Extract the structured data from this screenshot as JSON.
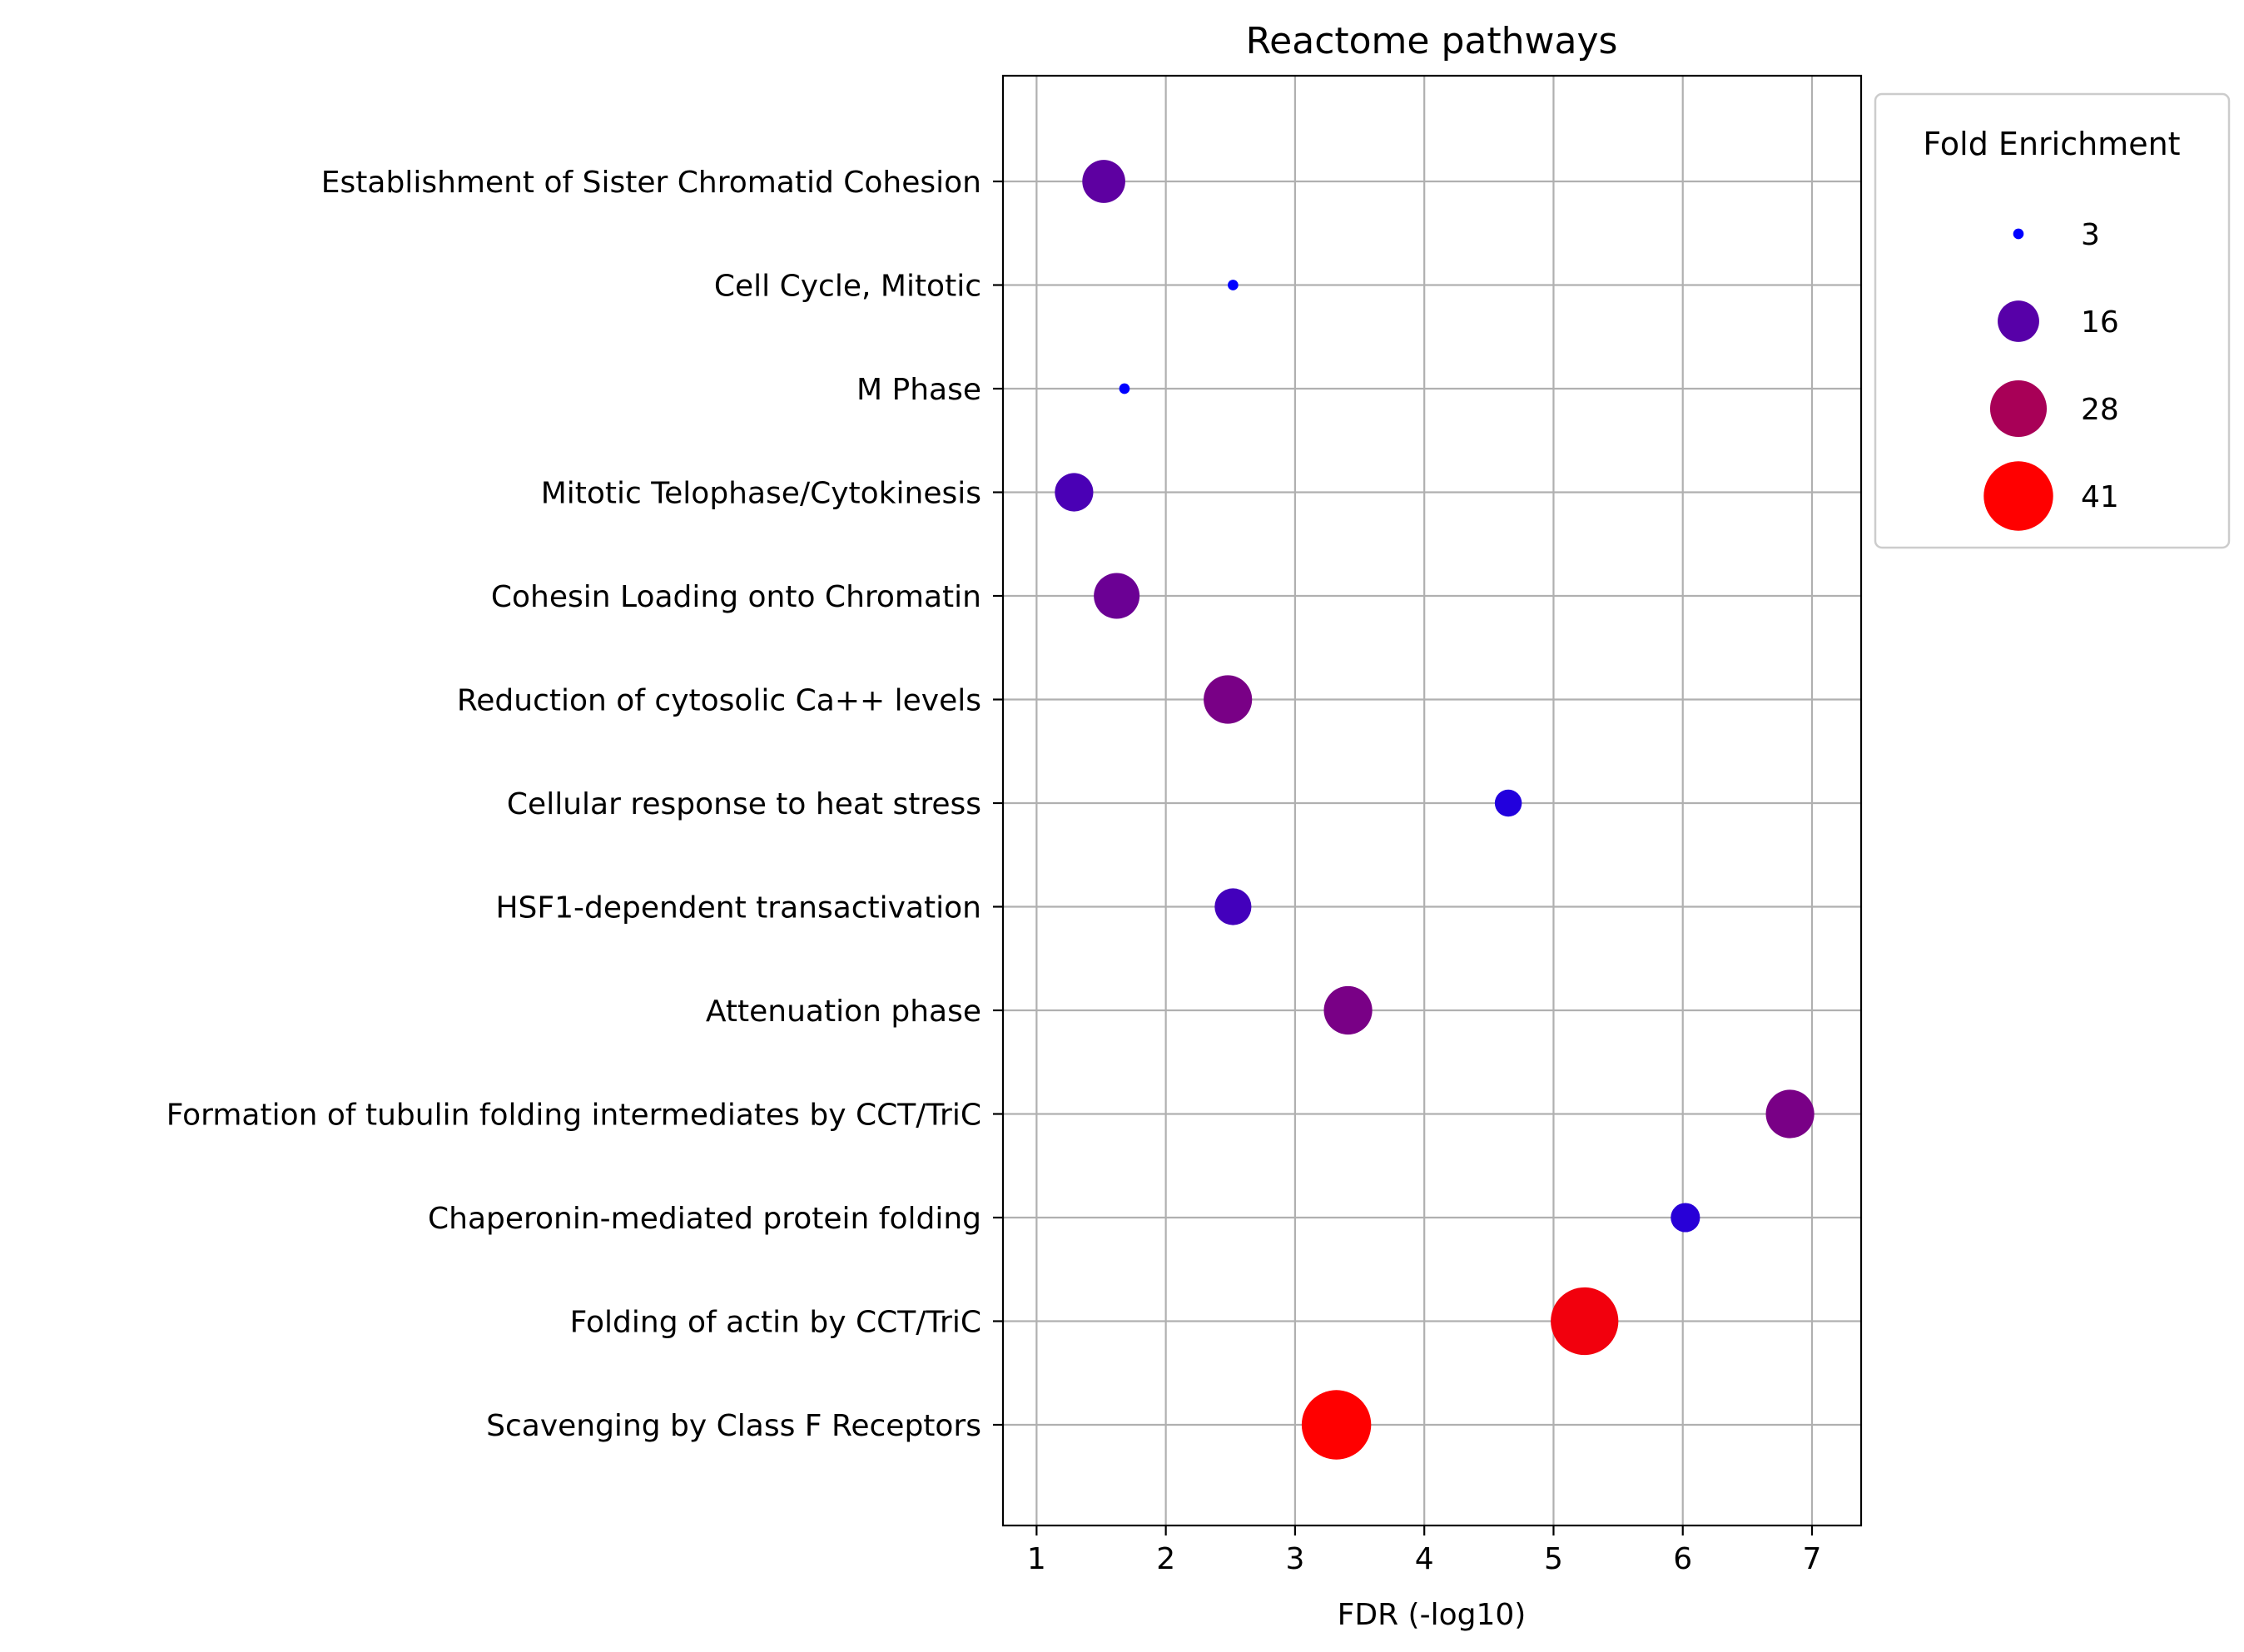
{
  "chart_data": {
    "type": "scatter",
    "title": "Reactome pathways",
    "xlabel": "FDR (-log10)",
    "ylabel": "",
    "xlim": [
      0.74,
      7.38
    ],
    "x_ticks": [
      1,
      2,
      3,
      4,
      5,
      6,
      7
    ],
    "x_tick_labels": [
      "1",
      "2",
      "3",
      "4",
      "5",
      "6",
      "7"
    ],
    "grid": true,
    "categories": [
      "Establishment of Sister Chromatid Cohesion",
      "Cell Cycle, Mitotic",
      "M Phase",
      "Mitotic Telophase/Cytokinesis",
      "Cohesin Loading onto Chromatin",
      "Reduction of cytosolic Ca++ levels",
      "Cellular response to heat stress",
      "HSF1-dependent transactivation",
      "Attenuation phase",
      "Formation of tubulin folding intermediates by CCT/TriC",
      "Chaperonin-mediated protein folding",
      "Folding of actin by CCT/TriC",
      "Scavenging by Class F Receptors"
    ],
    "points": [
      {
        "category": "Establishment of Sister Chromatid Cohesion",
        "x": 1.52,
        "fold_enrichment": 17
      },
      {
        "category": "Cell Cycle, Mitotic",
        "x": 2.52,
        "fold_enrichment": 3
      },
      {
        "category": "M Phase",
        "x": 1.68,
        "fold_enrichment": 3
      },
      {
        "category": "Mitotic Telophase/Cytokinesis",
        "x": 1.29,
        "fold_enrichment": 14
      },
      {
        "category": "Cohesin Loading onto Chromatin",
        "x": 1.62,
        "fold_enrichment": 19
      },
      {
        "category": "Reduction of cytosolic Ca++ levels",
        "x": 2.48,
        "fold_enrichment": 21
      },
      {
        "category": "Cellular response to heat stress",
        "x": 4.65,
        "fold_enrichment": 8
      },
      {
        "category": "HSF1-dependent transactivation",
        "x": 2.52,
        "fold_enrichment": 13
      },
      {
        "category": "Attenuation phase",
        "x": 3.41,
        "fold_enrichment": 21
      },
      {
        "category": "Formation of tubulin folding intermediates by CCT/TriC",
        "x": 6.83,
        "fold_enrichment": 21
      },
      {
        "category": "Chaperonin-mediated protein folding",
        "x": 6.02,
        "fold_enrichment": 9
      },
      {
        "category": "Folding of actin by CCT/TriC",
        "x": 5.24,
        "fold_enrichment": 39
      },
      {
        "category": "Scavenging by Class F Receptors",
        "x": 3.32,
        "fold_enrichment": 41
      }
    ],
    "size_encodes": "fold_enrichment",
    "color_encodes": "fold_enrichment",
    "color_low": "#0000ff",
    "color_high": "#ff0000",
    "fold_enrichment_range": [
      3,
      41
    ],
    "legend": {
      "title": "Fold Enrichment",
      "placement": "outside-right-top",
      "entries": [
        {
          "label": "3",
          "value": 3
        },
        {
          "label": "16",
          "value": 16
        },
        {
          "label": "28",
          "value": 28
        },
        {
          "label": "41",
          "value": 41
        }
      ]
    }
  }
}
